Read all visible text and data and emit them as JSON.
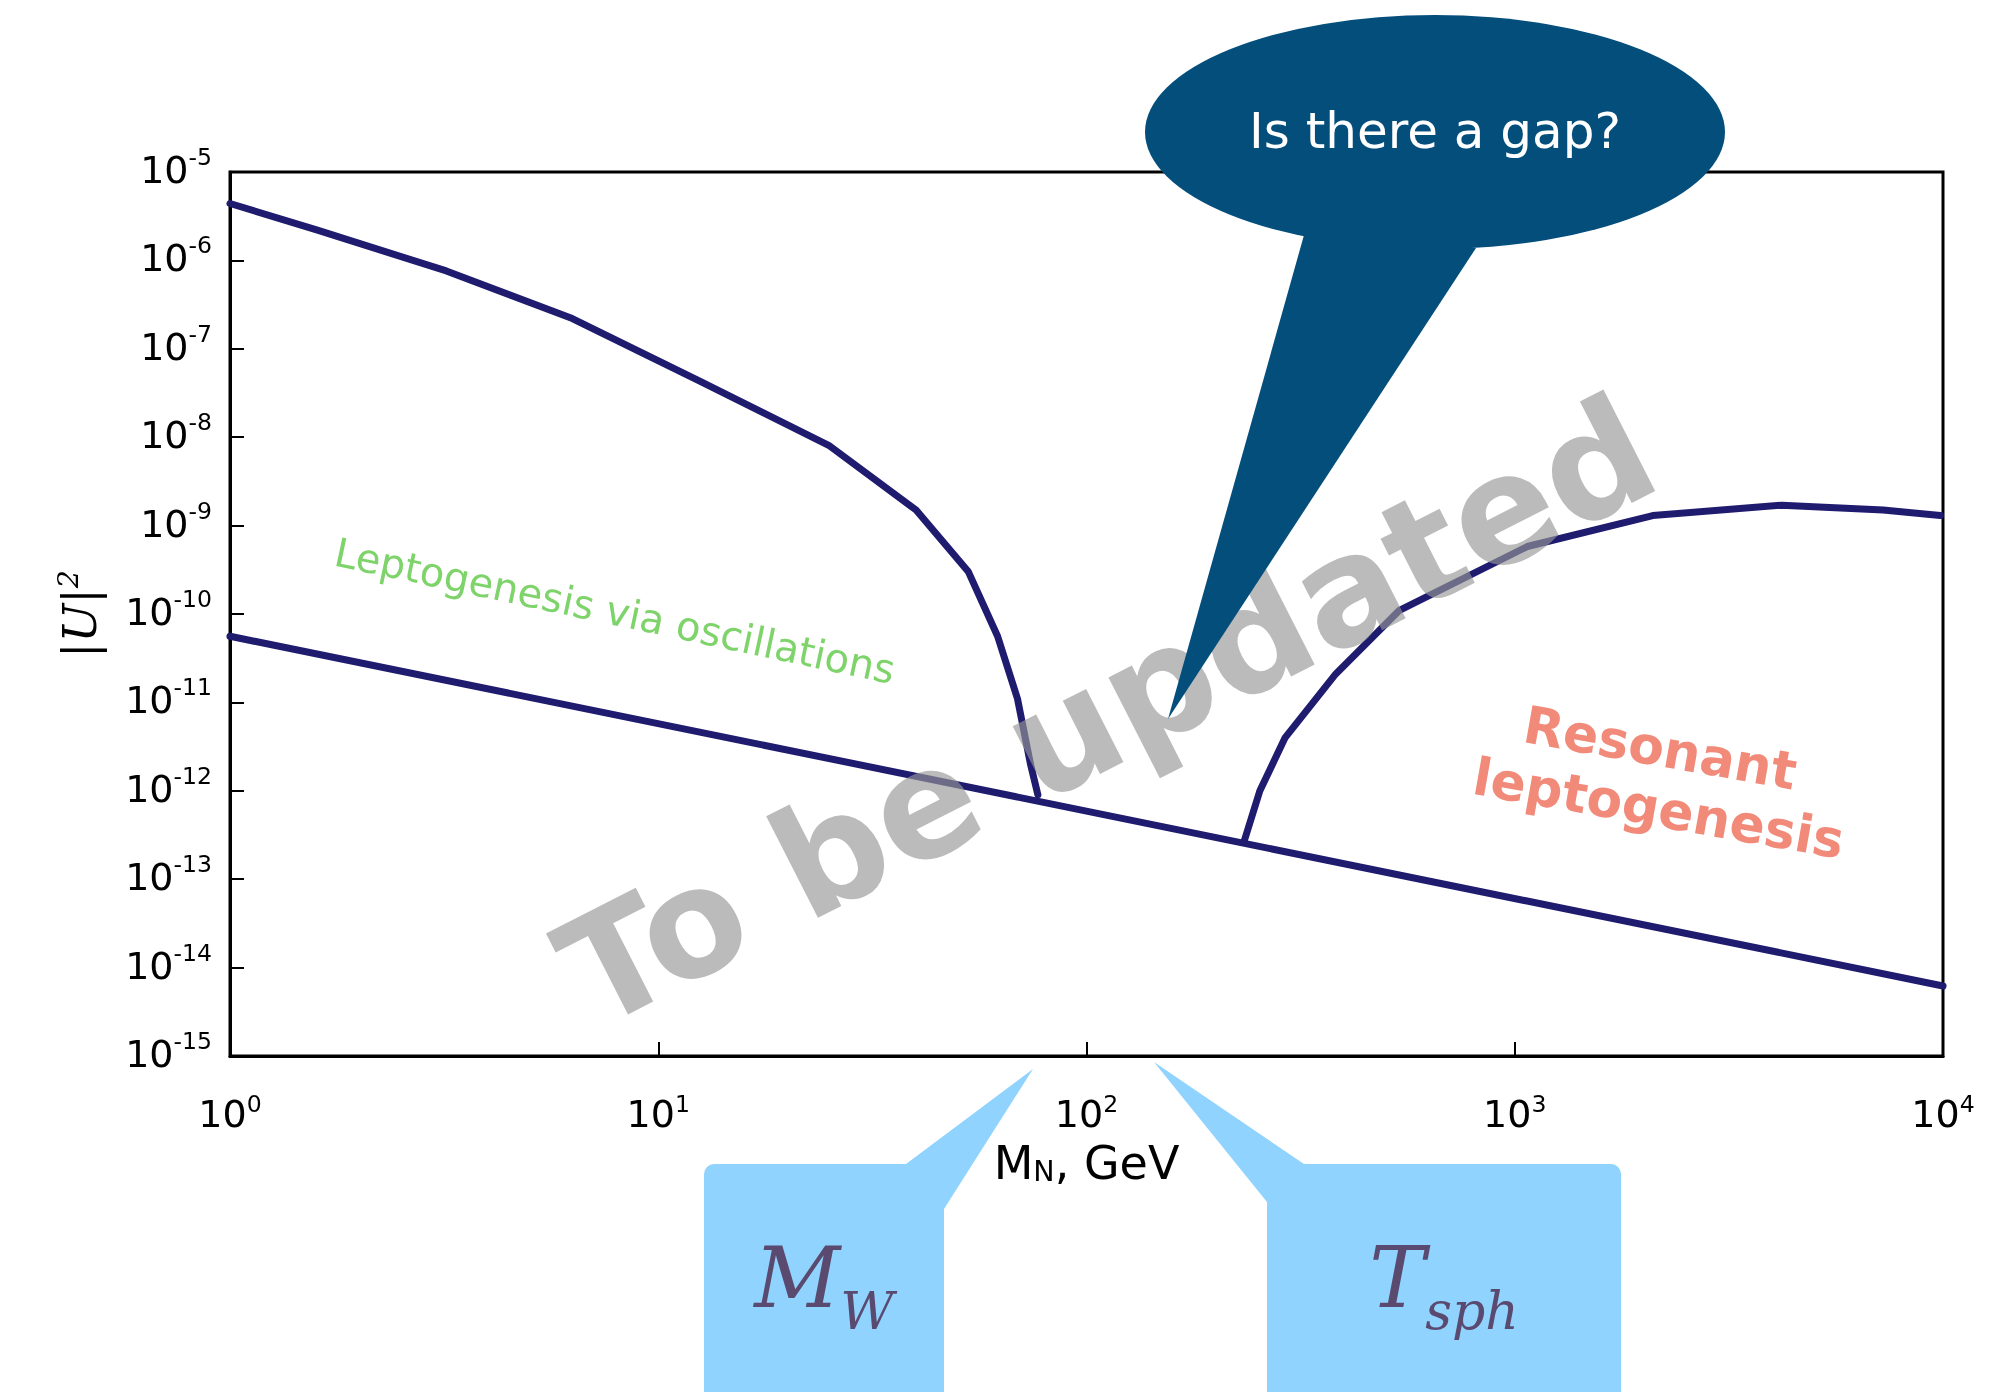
{
  "chart_data": {
    "type": "line",
    "xlabel": "M$_{N}$, GeV",
    "ylabel": "|U|$^{2}$",
    "log": "xy",
    "grid": false,
    "marker": "none",
    "line_style": "solid",
    "xlim": [
      1,
      10000
    ],
    "ylim": [
      1e-15,
      1e-05
    ],
    "xticks": [
      {
        "value": 1,
        "label": "10$^{0}$"
      },
      {
        "value": 10,
        "label": "10$^{1}$"
      },
      {
        "value": 100,
        "label": "10$^{2}$"
      },
      {
        "value": 1000,
        "label": "10$^{3}$"
      },
      {
        "value": 10000,
        "label": "10$^{4}$"
      }
    ],
    "yticks": [
      {
        "value": 1e-15,
        "label": "10$^{-15}$"
      },
      {
        "value": 1e-14,
        "label": "10$^{-14}$"
      },
      {
        "value": 1e-13,
        "label": "10$^{-13}$"
      },
      {
        "value": 1e-12,
        "label": "10$^{-12}$"
      },
      {
        "value": 1e-11,
        "label": "10$^{-11}$"
      },
      {
        "value": 1e-10,
        "label": "10$^{-10}$"
      },
      {
        "value": 1e-09,
        "label": "10$^{-9}$"
      },
      {
        "value": 1e-08,
        "label": "10$^{-8}$"
      },
      {
        "value": 1e-07,
        "label": "10$^{-7}$"
      },
      {
        "value": 1e-06,
        "label": "10$^{-6}$"
      },
      {
        "value": 1e-05,
        "label": "10$^{-5}$"
      }
    ],
    "series": [
      {
        "color": "#1f1b6e",
        "x": [
          1,
          1.6,
          3.2,
          6.3,
          12.5,
          25,
          40,
          53,
          62,
          69,
          74,
          77
        ],
        "values": [
          4.4e-06,
          2.2e-06,
          7.6e-07,
          2.2e-07,
          4.3e-08,
          8.1e-09,
          1.5e-09,
          3e-10,
          5.6e-11,
          1.1e-11,
          2e-12,
          9e-13
        ]
      },
      {
        "color": "#1f1b6e",
        "x": [
          234,
          254,
          291,
          382,
          538,
          1070,
          2100,
          4200,
          7250,
          9860
        ],
        "values": [
          2.8e-13,
          1e-12,
          4e-12,
          2.1e-11,
          1.1e-10,
          5.8e-10,
          1.3e-09,
          1.7e-09,
          1.5e-09,
          1.3e-09
        ]
      },
      {
        "color": "#1f1b6e",
        "x": [
          1,
          10000
        ],
        "values": [
          5.6e-11,
          6.2e-15
        ]
      }
    ],
    "annotations": [
      "Leptogenesis via oscillations",
      "Resonant leptogenesis",
      "To be updated",
      "Is there a gap?",
      "M$_{W}$",
      "T$_{sph}$"
    ]
  }
}
